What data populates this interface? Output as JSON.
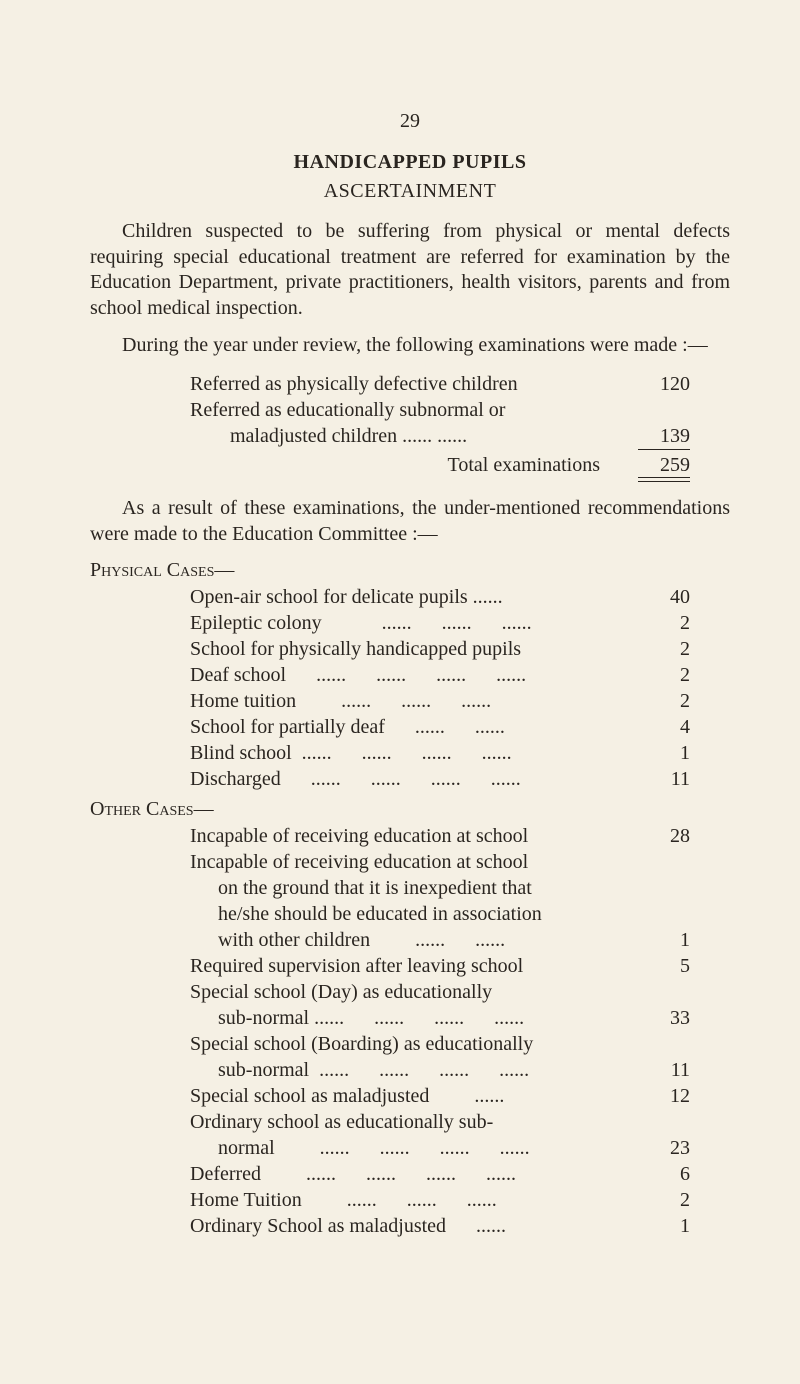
{
  "colors": {
    "background": "#f5f0e4",
    "text": "#2a2520",
    "rule": "#2a2520"
  },
  "typography": {
    "family": "Times New Roman",
    "body_size_pt": 15,
    "title_size_pt": 15,
    "line_height": 1.28
  },
  "page_number": "29",
  "title": "HANDICAPPED PUPILS",
  "subtitle": "ASCERTAINMENT",
  "para1": "Children suspected to be suffering from physical or mental defects requiring special educational treatment are referred for examination by the Education Department, private practitioners, health visitors, parents and from school medical inspection.",
  "para2": "During the year under review, the following examinations were made :—",
  "exams": {
    "rows": [
      {
        "label": "Referred as physically defective children",
        "value": "120"
      },
      {
        "label": "Referred as educationally subnormal or",
        "value": ""
      },
      {
        "label_cont": "maladjusted children      ......      ......",
        "value": "139"
      }
    ],
    "total_label": "Total examinations",
    "total_value": "259"
  },
  "para3": "As a result of these examinations, the under-mentioned re­commendations were made to the Education Committee :—",
  "physical": {
    "heading": "Physical Cases—",
    "rows": [
      {
        "label": "Open-air school for delicate pupils ......",
        "value": "40"
      },
      {
        "label": "Epileptic colony            ......      ......      ......",
        "value": "2"
      },
      {
        "label": "School for physically handicapped pupils",
        "value": "2"
      },
      {
        "label": "Deaf school      ......      ......      ......      ......",
        "value": "2"
      },
      {
        "label": "Home tuition         ......      ......      ......",
        "value": "2"
      },
      {
        "label": "School for partially deaf      ......      ......",
        "value": "4"
      },
      {
        "label": "Blind school  ......      ......      ......      ......",
        "value": "1"
      },
      {
        "label": "Discharged      ......      ......      ......      ......",
        "value": "11"
      }
    ]
  },
  "other": {
    "heading": "Other Cases—",
    "rows": [
      {
        "label": "Incapable of receiving education at school",
        "value": "28"
      },
      {
        "label": "Incapable of receiving education at school",
        "value": ""
      },
      {
        "label_cont": "on the ground that it is inexpedient that",
        "value": ""
      },
      {
        "label_cont": "he/she should be educated in association",
        "value": ""
      },
      {
        "label_cont": "with other children         ......      ......",
        "value": "1"
      },
      {
        "label": "Required supervision after leaving school",
        "value": "5"
      },
      {
        "label": "Special school (Day) as educationally",
        "value": ""
      },
      {
        "label_cont": "sub-normal ......      ......      ......      ......",
        "value": "33"
      },
      {
        "label": "Special school (Boarding) as educationally",
        "value": ""
      },
      {
        "label_cont": "sub-normal  ......      ......      ......      ......",
        "value": "11"
      },
      {
        "label": "Special school as maladjusted         ......",
        "value": "12"
      },
      {
        "label": "Ordinary school as educationally sub-",
        "value": ""
      },
      {
        "label_cont": "normal         ......      ......      ......      ......",
        "value": "23"
      },
      {
        "label": "Deferred         ......      ......      ......      ......",
        "value": "6"
      },
      {
        "label": "Home Tuition         ......      ......      ......",
        "value": "2"
      },
      {
        "label": "Ordinary School as maladjusted      ......",
        "value": "1"
      }
    ]
  }
}
